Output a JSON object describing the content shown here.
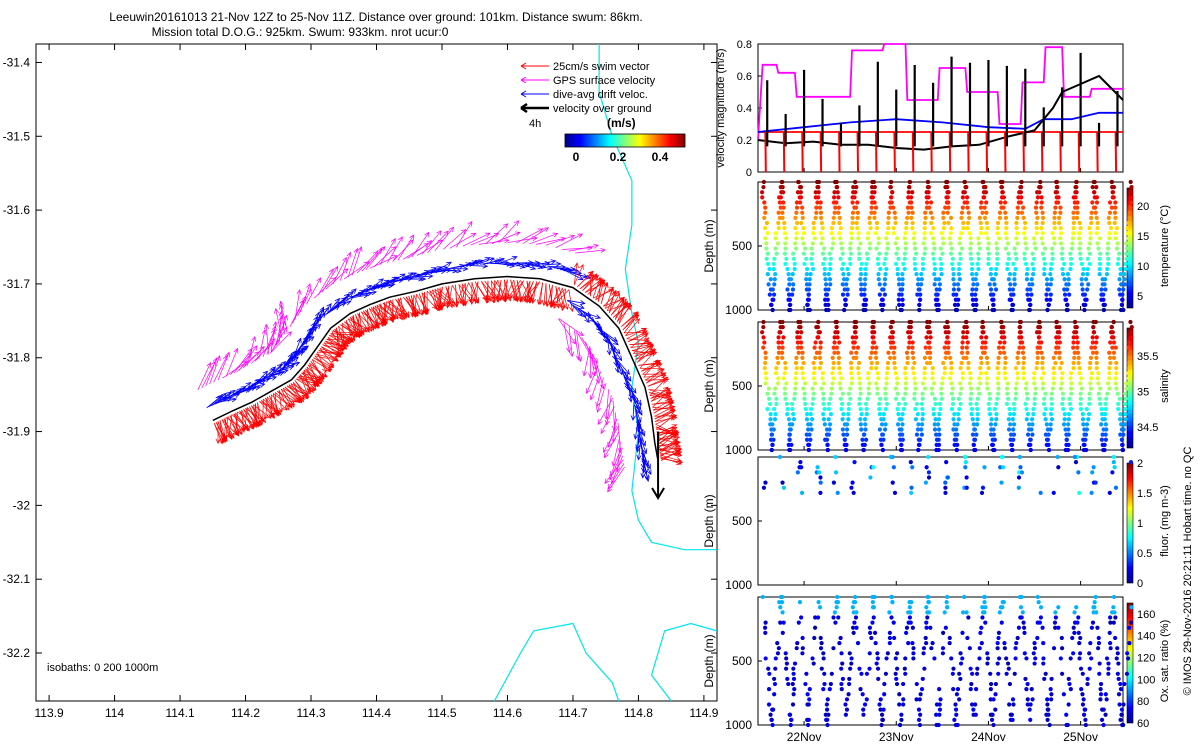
{
  "title": {
    "line1": "Leeuwin20161013 21-Nov 12Z to 25-Nov 11Z. Distance over ground: 101km. Distance swum: 86km.",
    "line2": "Mission total D.O.G.: 925km. Swum: 933km. nrot ucur:0"
  },
  "colors": {
    "swim": "#ff0000",
    "gps": "#ff00ff",
    "drift": "#0000ff",
    "dog": "#000000",
    "isobath": "#00e5ee"
  },
  "legend": {
    "swim": "25cm/s swim vector",
    "gps": "GPS surface velocity",
    "drift": "dive-avg drift veloc.",
    "dog": "velocity over ground",
    "time_label": "4h"
  },
  "colorbar_speed": {
    "label": "(m/s)",
    "ticks": [
      "0",
      "0.2",
      "0.4"
    ]
  },
  "isobaths_text": "isobaths: 0   200   1000m",
  "footer_text": "© IMOS 29-Nov-2016 20:21:11 Hobart time. no QC",
  "chart_data": [
    {
      "type": "scatter",
      "name": "map",
      "xlim": [
        113.88,
        114.92
      ],
      "ylim": [
        -32.265,
        -31.375
      ],
      "xticks": [
        "113.9",
        "114",
        "114.1",
        "114.2",
        "114.3",
        "114.4",
        "114.5",
        "114.6",
        "114.7",
        "114.8",
        "114.9"
      ],
      "yticks": [
        "-31.4",
        "-31.5",
        "-31.6",
        "-31.7",
        "-31.8",
        "-31.9",
        "-32",
        "-32.1",
        "-32.2"
      ],
      "track_lon": [
        114.15,
        114.18,
        114.21,
        114.24,
        114.27,
        114.29,
        114.31,
        114.33,
        114.36,
        114.39,
        114.42,
        114.46,
        114.5,
        114.55,
        114.6,
        114.65,
        114.7,
        114.74,
        114.77,
        114.79,
        114.81,
        114.82,
        114.825,
        114.83
      ],
      "track_lat": [
        -31.885,
        -31.872,
        -31.86,
        -31.845,
        -31.83,
        -31.81,
        -31.785,
        -31.76,
        -31.74,
        -31.728,
        -31.718,
        -31.71,
        -31.7,
        -31.693,
        -31.69,
        -31.693,
        -31.705,
        -31.73,
        -31.76,
        -31.8,
        -31.84,
        -31.88,
        -31.915,
        -31.94
      ]
    },
    {
      "type": "line",
      "name": "velocity",
      "ylabel": "velocity magnitude (m/s)",
      "ylim": [
        0,
        0.8
      ],
      "yticks": [
        "0",
        "0.2",
        "0.4",
        "0.6",
        "0.8"
      ],
      "series": [
        {
          "key": "swim_speed",
          "x": [
            21.5,
            25.46
          ],
          "y": [
            0.25,
            0.25
          ]
        },
        {
          "key": "gps",
          "x": [
            21.5,
            21.55,
            21.7,
            21.72,
            21.9,
            21.92,
            22.5,
            22.52,
            22.85,
            22.87,
            23.1,
            23.12,
            23.45,
            23.47,
            23.75,
            23.77,
            24.1,
            24.12,
            24.35,
            24.37,
            24.6,
            24.62,
            24.8,
            24.82,
            25.1,
            25.12,
            25.46
          ],
          "y": [
            0.2,
            0.67,
            0.67,
            0.62,
            0.62,
            0.47,
            0.47,
            0.76,
            0.76,
            0.8,
            0.8,
            0.45,
            0.45,
            0.65,
            0.65,
            0.5,
            0.5,
            0.3,
            0.3,
            0.56,
            0.56,
            0.78,
            0.78,
            0.47,
            0.47,
            0.52,
            0.52
          ]
        },
        {
          "key": "drift",
          "x": [
            21.5,
            22.0,
            22.5,
            23.0,
            23.5,
            24.0,
            24.4,
            24.6,
            24.9,
            25.2,
            25.46
          ],
          "y": [
            0.25,
            0.28,
            0.31,
            0.33,
            0.31,
            0.28,
            0.27,
            0.33,
            0.33,
            0.37,
            0.37
          ]
        },
        {
          "key": "dog",
          "x": [
            21.5,
            21.8,
            22.1,
            22.4,
            22.7,
            23.0,
            23.3,
            23.6,
            23.9,
            24.2,
            24.5,
            24.7,
            24.8,
            25.0,
            25.2,
            25.46
          ],
          "y": [
            0.2,
            0.18,
            0.19,
            0.17,
            0.17,
            0.15,
            0.14,
            0.16,
            0.17,
            0.22,
            0.26,
            0.4,
            0.5,
            0.55,
            0.6,
            0.45
          ]
        }
      ]
    },
    {
      "type": "heatmap",
      "name": "temperature",
      "cblabel": "temperature (°C)",
      "cbticks": [
        "5",
        "10",
        "15",
        "20"
      ],
      "clim": [
        3,
        23
      ],
      "yticks": [
        "500",
        "1000"
      ],
      "ylabel": "Depth (m)"
    },
    {
      "type": "heatmap",
      "name": "salinity",
      "cblabel": "salinity",
      "cbticks": [
        "34.5",
        "35",
        "35.5"
      ],
      "clim": [
        34.2,
        35.9
      ],
      "yticks": [
        "500",
        "1000"
      ],
      "ylabel": "Depth (m)"
    },
    {
      "type": "heatmap",
      "name": "fluor",
      "cblabel": "fluor. (mg m-3)",
      "cbticks": [
        "0",
        "0.5",
        "1",
        "1.5",
        "2"
      ],
      "clim": [
        0,
        2
      ],
      "yticks": [
        "500",
        "1000"
      ],
      "ylabel": "Depth (m)"
    },
    {
      "type": "heatmap",
      "name": "oxygen",
      "cblabel": "Ox. sat. ratio (%)",
      "cbticks": [
        "60",
        "80",
        "100",
        "120",
        "140",
        "160"
      ],
      "clim": [
        60,
        170
      ],
      "yticks": [
        "500",
        "1000"
      ],
      "ylabel": "Depth (m)"
    }
  ],
  "time_axis": {
    "ticks": [
      "22Nov",
      "23Nov",
      "24Nov",
      "25Nov"
    ],
    "values": [
      22,
      23,
      24,
      25
    ],
    "range": [
      21.5,
      25.46
    ]
  }
}
